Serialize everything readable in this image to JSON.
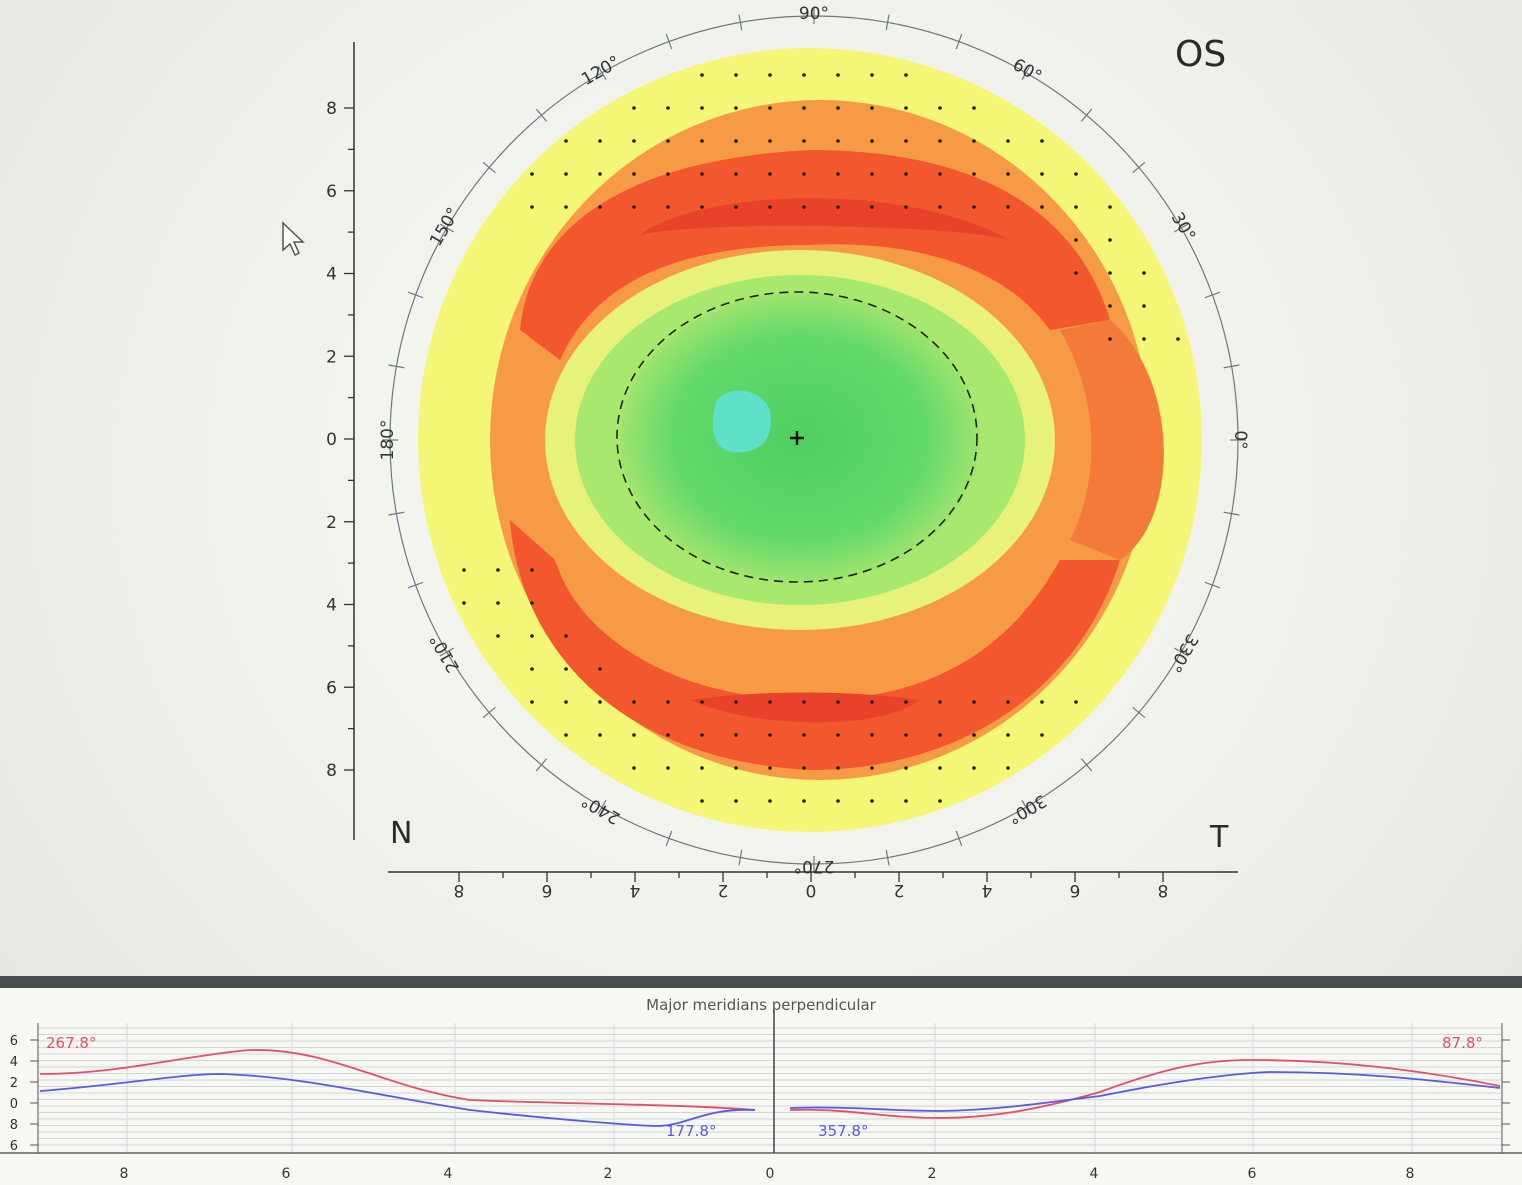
{
  "map": {
    "eye": "OS",
    "nasal_label": "N",
    "temporal_label": "T",
    "angle_labels": [
      {
        "angle": 0,
        "text": "0°"
      },
      {
        "angle": 30,
        "text": "30°"
      },
      {
        "angle": 60,
        "text": "60°"
      },
      {
        "angle": 90,
        "text": "90°"
      },
      {
        "angle": 120,
        "text": "120°"
      },
      {
        "angle": 150,
        "text": "150°"
      },
      {
        "angle": 180,
        "text": "180°"
      },
      {
        "angle": 210,
        "text": "210°"
      },
      {
        "angle": 240,
        "text": "240°"
      },
      {
        "angle": 270,
        "text": "270°"
      },
      {
        "angle": 300,
        "text": "300°"
      },
      {
        "angle": 330,
        "text": "330°"
      }
    ],
    "y_axis_ticks": [
      "8",
      "6",
      "4",
      "2",
      "0",
      "2",
      "4",
      "6",
      "8"
    ],
    "x_axis_ticks": [
      "8",
      "6",
      "4",
      "2",
      "0",
      "2",
      "4",
      "6",
      "8"
    ],
    "colors": {
      "flat_center": "#55d463",
      "cyan_spot": "#5fe0c8",
      "mid_yellow": "#e6f27a",
      "steep_red": "#f2572e",
      "orange": "#f79a46",
      "edge_yellow": "#f4f776"
    }
  },
  "profile": {
    "title": "Major meridians perpendicular",
    "left_y_ticks": [
      "6",
      "4",
      "2",
      "0",
      "8",
      "6"
    ],
    "x_ticks_left": [
      "8",
      "6",
      "4",
      "2",
      "0"
    ],
    "x_ticks_right": [
      "2",
      "4",
      "6",
      "8"
    ],
    "meridian_labels": {
      "left_red": "267.8°",
      "left_blue": "177.8°",
      "right_red": "87.8°",
      "right_blue": "357.8°"
    },
    "colors": {
      "red": "#e0506a",
      "blue": "#5a5ae0"
    }
  }
}
